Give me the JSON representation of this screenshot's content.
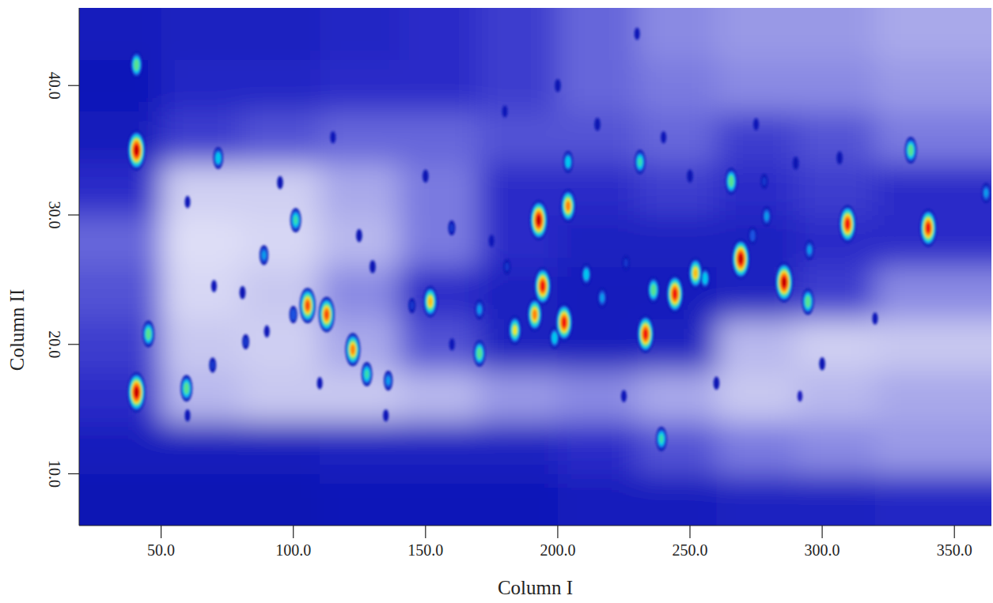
{
  "chart_data": {
    "type": "contour",
    "x_label": "Column I",
    "y_label": "Column II",
    "xlim": [
      19,
      364
    ],
    "ylim": [
      6,
      46
    ],
    "xticks": [
      {
        "value": 50,
        "label": "50.0"
      },
      {
        "value": 100,
        "label": "100.0"
      },
      {
        "value": 150,
        "label": "150.0"
      },
      {
        "value": 200,
        "label": "200.0"
      },
      {
        "value": 250,
        "label": "250.0"
      },
      {
        "value": 300,
        "label": "300.0"
      },
      {
        "value": 350,
        "label": "350.0"
      }
    ],
    "yticks": [
      {
        "value": 10,
        "label": "10.0"
      },
      {
        "value": 20,
        "label": "20.0"
      },
      {
        "value": 30,
        "label": "30.0"
      },
      {
        "value": 40,
        "label": "40.0"
      }
    ],
    "grid": false,
    "color_range": [
      0,
      100
    ],
    "background": {
      "x_edges": [
        19,
        50,
        80,
        110,
        140,
        170,
        200,
        230,
        260,
        290,
        320,
        364
      ],
      "y_edges": [
        6,
        10,
        14,
        18,
        22,
        26,
        30,
        34,
        38,
        42,
        46
      ],
      "values": [
        [
          40,
          40,
          40,
          38,
          38,
          38,
          36,
          36,
          34,
          34,
          32
        ],
        [
          36,
          36,
          36,
          34,
          34,
          34,
          30,
          26,
          22,
          20,
          18
        ],
        [
          30,
          14,
          12,
          12,
          14,
          18,
          20,
          16,
          12,
          14,
          16
        ],
        [
          28,
          12,
          10,
          16,
          26,
          34,
          36,
          34,
          14,
          10,
          12
        ],
        [
          26,
          8,
          12,
          20,
          30,
          34,
          36,
          36,
          34,
          28,
          20
        ],
        [
          24,
          6,
          8,
          14,
          22,
          30,
          34,
          34,
          34,
          30,
          30
        ],
        [
          30,
          10,
          10,
          16,
          22,
          30,
          30,
          28,
          30,
          28,
          30
        ],
        [
          36,
          28,
          26,
          24,
          24,
          26,
          26,
          24,
          28,
          26,
          22
        ],
        [
          38,
          32,
          32,
          30,
          30,
          28,
          24,
          22,
          20,
          20,
          18
        ],
        [
          36,
          34,
          34,
          32,
          30,
          28,
          24,
          20,
          18,
          18,
          16
        ]
      ]
    },
    "peaks": {
      "x": [
        40.7,
        40.7,
        40.7,
        59.6,
        71.6,
        100.9,
        105.4,
        112.6,
        122.5,
        127.8,
        135.9,
        88.9,
        151.8,
        170.4,
        183.8,
        192.8,
        194.3,
        191.3,
        202.4,
        203.9,
        203.9,
        210.8,
        231.1,
        233.2,
        236.2,
        244.3,
        252.1,
        239.2,
        265.6,
        269.2,
        279.0,
        285.6,
        294.6,
        309.6,
        333.5,
        340.1,
        362.0,
        295.2,
        255.7,
        180.8,
        159.9,
        170.4,
        80.8,
        124.9,
        69.5,
        45.2,
        291.6,
        278.1,
        306.6,
        82.0,
        100.0,
        144.9,
        216.8,
        225.8,
        273.7,
        198.8,
        95,
        60,
        150,
        175,
        215,
        240,
        250,
        275,
        290,
        115,
        130,
        160,
        225,
        260,
        135,
        110,
        300,
        320,
        200,
        230,
        180,
        90,
        70,
        60
      ],
      "y": [
        35.0,
        41.6,
        16.3,
        16.6,
        34.4,
        29.6,
        23.0,
        22.3,
        19.6,
        17.7,
        17.2,
        26.9,
        23.3,
        19.3,
        21.1,
        29.6,
        24.5,
        22.3,
        21.7,
        30.7,
        34.1,
        25.4,
        34.1,
        20.8,
        24.2,
        23.9,
        25.5,
        12.7,
        32.6,
        26.6,
        29.9,
        24.8,
        23.3,
        29.3,
        35.0,
        29.0,
        31.7,
        27.3,
        25.1,
        26.0,
        29.0,
        22.7,
        24.0,
        28.4,
        18.4,
        20.8,
        16.0,
        32.6,
        34.4,
        20.2,
        22.3,
        23.0,
        23.6,
        26.3,
        28.4,
        20.5,
        32.5,
        31,
        33,
        28,
        37,
        36,
        33,
        37,
        34,
        36,
        26,
        20,
        16,
        17,
        14.5,
        17,
        18.5,
        22,
        40,
        44,
        38,
        21,
        24.5,
        14.5
      ],
      "values": [
        100,
        70,
        100,
        70,
        60,
        65,
        90,
        90,
        85,
        65,
        55,
        55,
        80,
        70,
        75,
        100,
        95,
        85,
        95,
        85,
        60,
        60,
        65,
        95,
        70,
        95,
        80,
        65,
        70,
        100,
        55,
        100,
        70,
        95,
        70,
        95,
        55,
        55,
        60,
        45,
        45,
        55,
        40,
        40,
        45,
        70,
        35,
        45,
        40,
        45,
        50,
        45,
        55,
        45,
        50,
        60,
        40,
        38,
        40,
        38,
        40,
        38,
        40,
        38,
        40,
        38,
        40,
        38,
        38,
        40,
        38,
        38,
        40,
        38,
        40,
        38,
        38,
        38,
        38,
        38
      ]
    }
  }
}
